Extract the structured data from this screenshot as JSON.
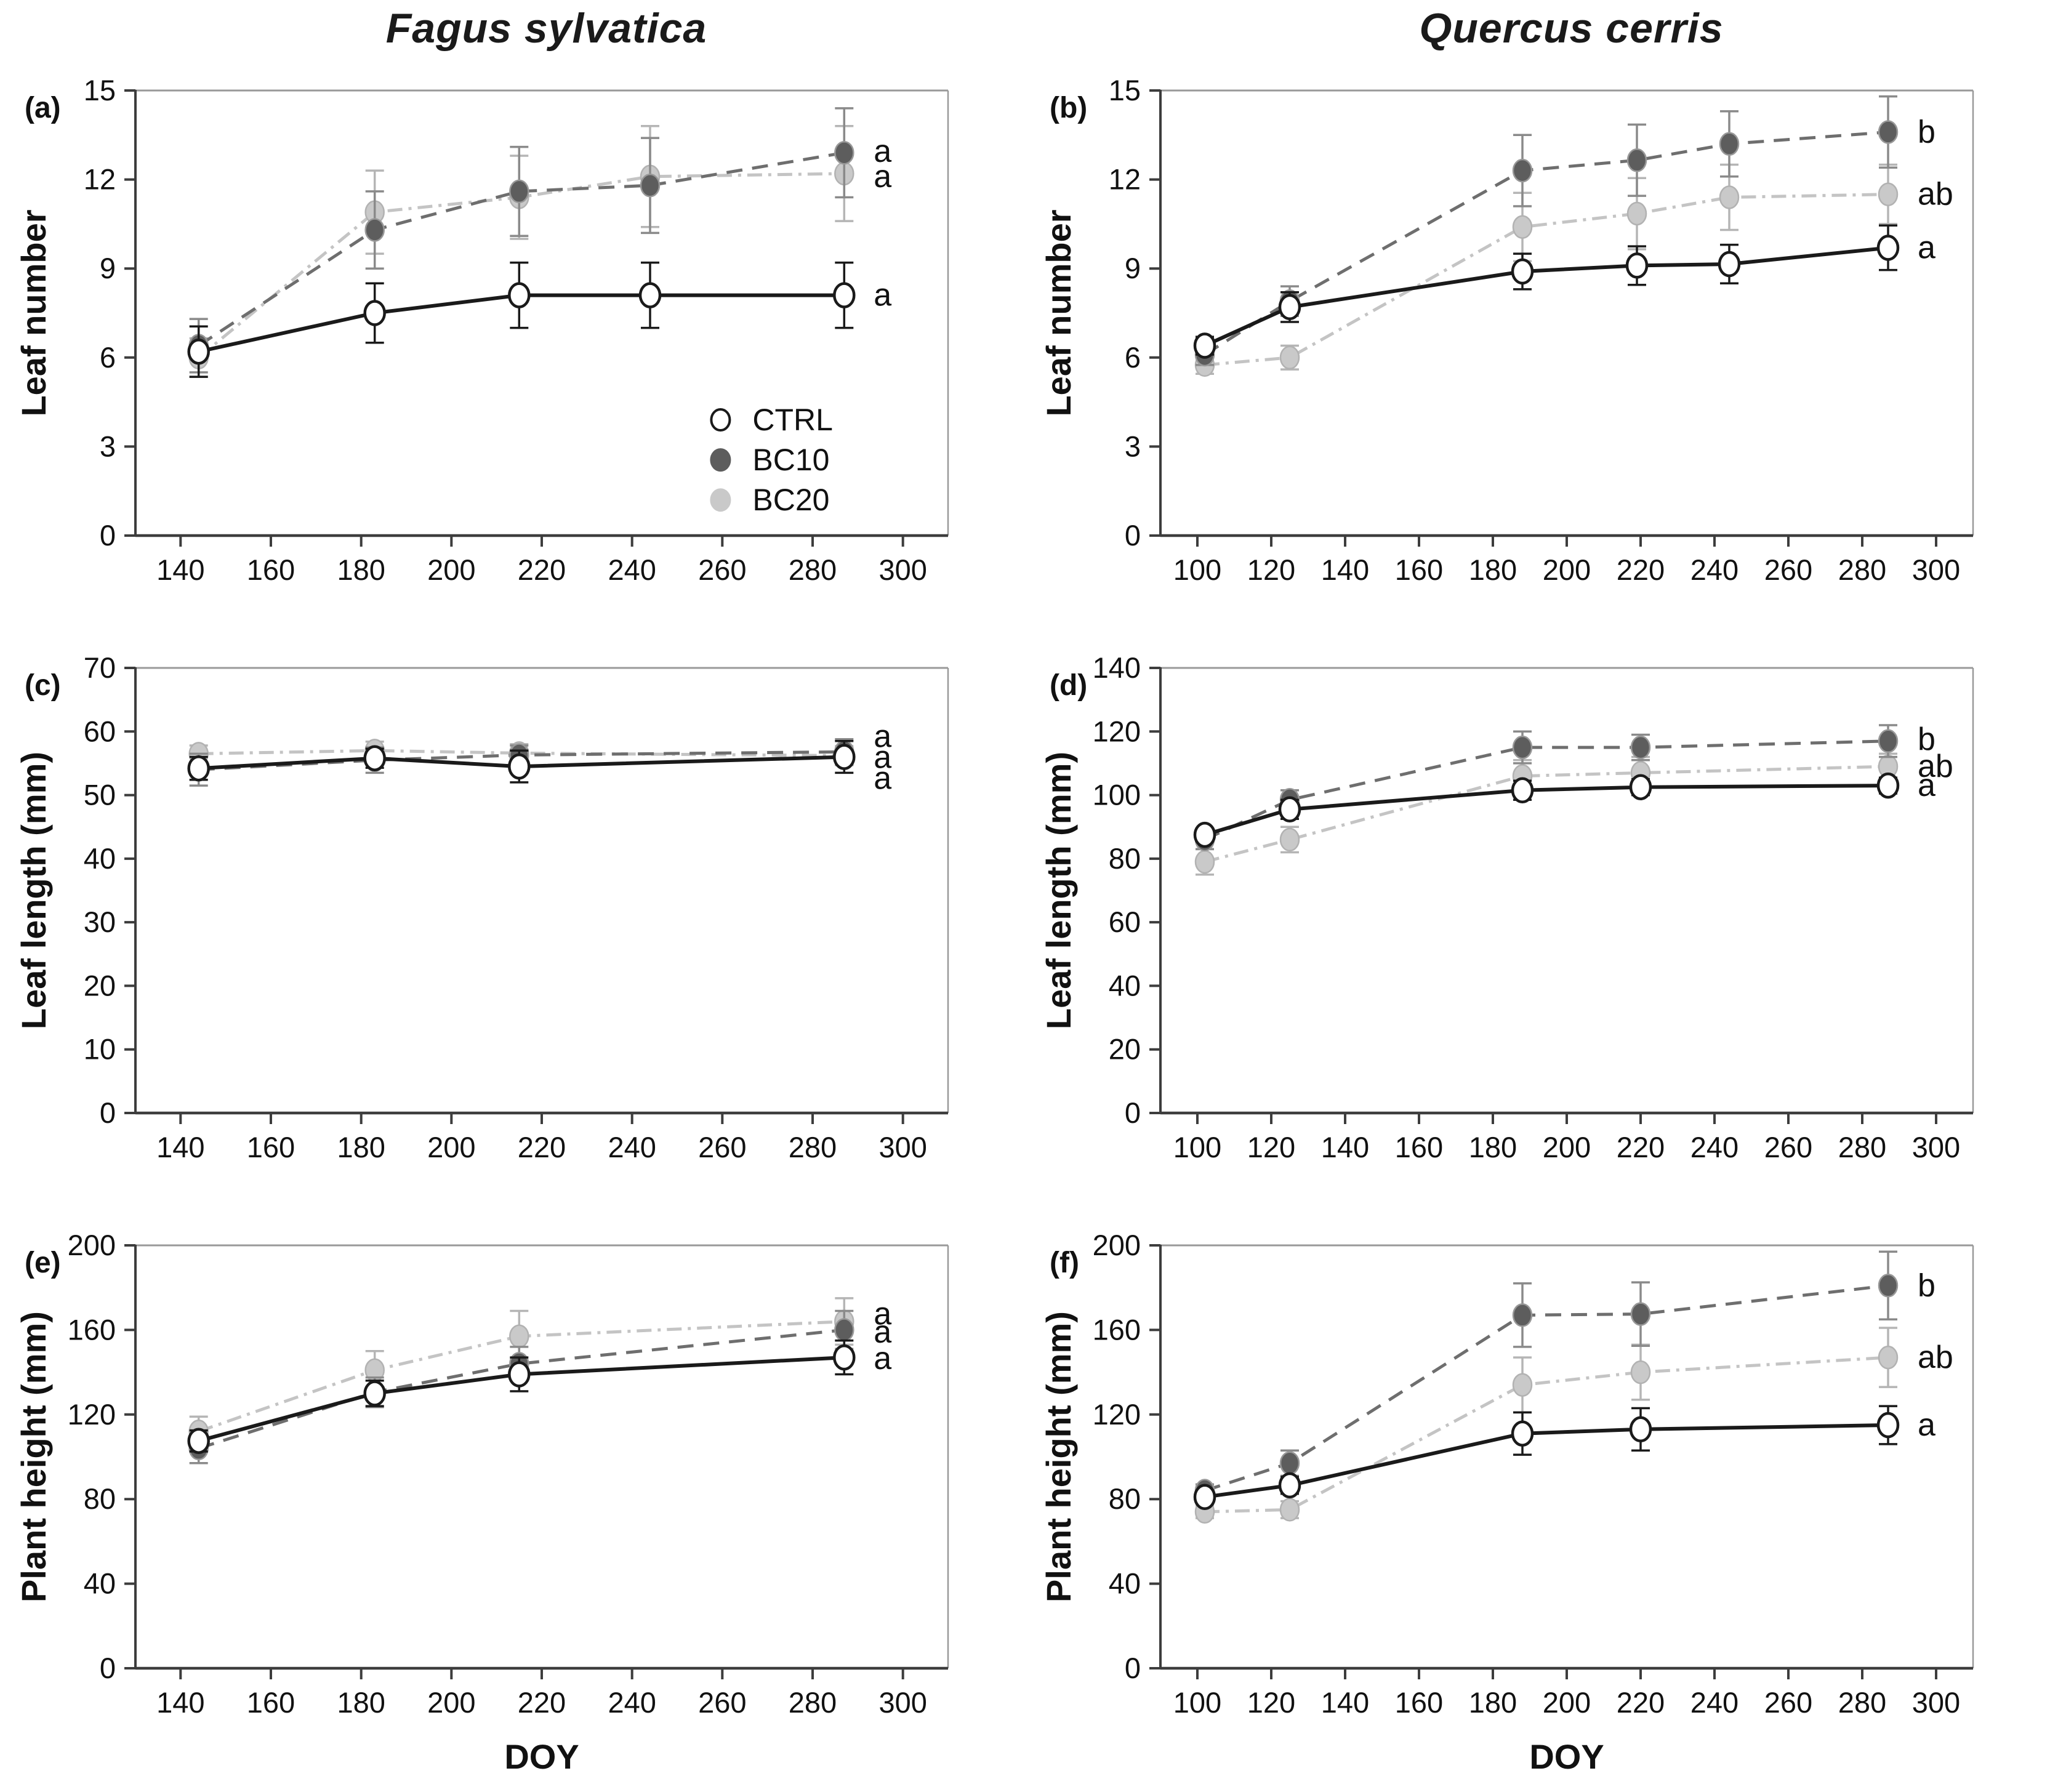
{
  "figure": {
    "column_titles": [
      "Fagus sylvatica",
      "Quercus cerris"
    ],
    "x_axis_label": "DOY",
    "legend": {
      "items": [
        "CTRL",
        "BC10",
        "BC20"
      ],
      "location": "panel-a lower right"
    },
    "series_styles": {
      "CTRL": {
        "line_color": "#1a1a1a",
        "dash": "",
        "line_width": 6,
        "marker_fill": "#ffffff",
        "marker_stroke": "#1a1a1a",
        "marker_stroke_width": 4.5,
        "err_color": "#1a1a1a"
      },
      "BC10": {
        "line_color": "#6e6e6e",
        "dash": "26 16",
        "line_width": 5,
        "marker_fill": "#5d5d5d",
        "marker_stroke": "#989898",
        "marker_stroke_width": 2.5,
        "err_color": "#8a8a8a"
      },
      "BC20": {
        "line_color": "#c4c4c4",
        "dash": "24 10 5 10",
        "line_width": 5,
        "marker_fill": "#c9c9c9",
        "marker_stroke": "#b2b2b2",
        "marker_stroke_width": 2.5,
        "err_color": "#b5b5b5"
      }
    },
    "axis_colors": {
      "main_axis": "#3d3d3d",
      "box_line": "#999999",
      "tick": "#3d3d3d",
      "text": "#111111"
    }
  },
  "chart_data": [
    {
      "type": "line",
      "panel_label": "(a)",
      "column": "Fagus sylvatica",
      "ylabel": "Leaf number",
      "ylim": [
        0,
        15
      ],
      "yticks": [
        0,
        3,
        6,
        9,
        12,
        15
      ],
      "xlim": [
        130,
        310
      ],
      "xticks": [
        140,
        160,
        180,
        200,
        220,
        240,
        260,
        280,
        300
      ],
      "x": [
        144,
        183,
        215,
        244,
        287
      ],
      "show_xlabel": false,
      "show_legend": true,
      "series": [
        {
          "name": "CTRL",
          "values": [
            6.2,
            7.5,
            8.1,
            8.1,
            8.1
          ],
          "errors": [
            0.85,
            1.0,
            1.1,
            1.1,
            1.1
          ],
          "sig_letter": "a",
          "sig_letter_y": 8.1
        },
        {
          "name": "BC10",
          "values": [
            6.4,
            10.3,
            11.6,
            11.8,
            12.9
          ],
          "errors": [
            0.9,
            1.3,
            1.5,
            1.6,
            1.5
          ],
          "sig_letter": "a",
          "sig_letter_y": 12.95
        },
        {
          "name": "BC20",
          "values": [
            6.0,
            10.9,
            11.4,
            12.1,
            12.2
          ],
          "errors": [
            0.65,
            1.4,
            1.4,
            1.7,
            1.6
          ],
          "sig_letter": "a",
          "sig_letter_y": 12.1
        }
      ]
    },
    {
      "type": "line",
      "panel_label": "(b)",
      "column": "Quercus cerris",
      "ylabel": "Leaf number",
      "ylim": [
        0,
        15
      ],
      "yticks": [
        0,
        3,
        6,
        9,
        12,
        15
      ],
      "xlim": [
        90,
        310
      ],
      "xticks": [
        100,
        120,
        140,
        160,
        180,
        200,
        220,
        240,
        260,
        280,
        300
      ],
      "x": [
        102,
        125,
        188,
        219,
        244,
        287
      ],
      "show_xlabel": false,
      "show_legend": false,
      "series": [
        {
          "name": "CTRL",
          "values": [
            6.4,
            7.7,
            8.9,
            9.1,
            9.15,
            9.7
          ],
          "errors": [
            0.3,
            0.5,
            0.6,
            0.65,
            0.65,
            0.75
          ],
          "sig_letter": "a",
          "sig_letter_y": 9.7
        },
        {
          "name": "BC10",
          "values": [
            6.1,
            7.9,
            12.3,
            12.65,
            13.2,
            13.6
          ],
          "errors": [
            0.35,
            0.5,
            1.2,
            1.2,
            1.1,
            1.2
          ],
          "sig_letter": "b",
          "sig_letter_y": 13.6
        },
        {
          "name": "BC20",
          "values": [
            5.75,
            6.0,
            10.4,
            10.85,
            11.4,
            11.5
          ],
          "errors": [
            0.3,
            0.4,
            1.15,
            1.2,
            1.1,
            1.0
          ],
          "sig_letter": "ab",
          "sig_letter_y": 11.5
        }
      ]
    },
    {
      "type": "line",
      "panel_label": "(c)",
      "column": "Fagus sylvatica",
      "ylabel": "Leaf length (mm)",
      "ylim": [
        0,
        70
      ],
      "yticks": [
        0,
        10,
        20,
        30,
        40,
        50,
        60,
        70
      ],
      "xlim": [
        130,
        310
      ],
      "xticks": [
        140,
        160,
        180,
        200,
        220,
        240,
        260,
        280,
        300
      ],
      "x": [
        144,
        183,
        215,
        287
      ],
      "show_xlabel": false,
      "show_legend": false,
      "series": [
        {
          "name": "CTRL",
          "values": [
            54.2,
            55.8,
            54.5,
            56.0
          ],
          "errors": [
            1.8,
            1.5,
            2.5,
            2.5
          ],
          "sig_letter": "a",
          "sig_letter_y": 52.6
        },
        {
          "name": "BC10",
          "values": [
            54.0,
            55.5,
            56.3,
            56.8
          ],
          "errors": [
            2.5,
            2.0,
            1.5,
            2.0
          ],
          "sig_letter": "a",
          "sig_letter_y": 59.2
        },
        {
          "name": "BC20",
          "values": [
            56.5,
            57.0,
            56.6,
            56.2
          ],
          "errors": [
            1.3,
            1.4,
            1.4,
            1.5
          ],
          "sig_letter": "a",
          "sig_letter_y": 55.9
        }
      ]
    },
    {
      "type": "line",
      "panel_label": "(d)",
      "column": "Quercus cerris",
      "ylabel": "Leaf length (mm)",
      "ylim": [
        0,
        140
      ],
      "yticks": [
        0,
        20,
        40,
        60,
        80,
        100,
        120,
        140
      ],
      "xlim": [
        90,
        310
      ],
      "xticks": [
        100,
        120,
        140,
        160,
        180,
        200,
        220,
        240,
        260,
        280,
        300
      ],
      "x": [
        102,
        125,
        188,
        220,
        287
      ],
      "show_xlabel": false,
      "show_legend": false,
      "series": [
        {
          "name": "CTRL",
          "values": [
            87.5,
            95.5,
            101.5,
            102.5,
            103
          ],
          "errors": [
            2,
            3,
            3,
            2.5,
            2.5
          ],
          "sig_letter": "a",
          "sig_letter_y": 103
        },
        {
          "name": "BC10",
          "values": [
            86,
            98.5,
            115,
            115,
            117
          ],
          "errors": [
            3,
            3,
            5,
            4,
            5
          ],
          "sig_letter": "b",
          "sig_letter_y": 117.5
        },
        {
          "name": "BC20",
          "values": [
            79,
            86,
            106,
            107,
            109
          ],
          "errors": [
            4,
            4,
            5,
            5,
            4
          ],
          "sig_letter": "ab",
          "sig_letter_y": 109
        }
      ]
    },
    {
      "type": "line",
      "panel_label": "(e)",
      "column": "Fagus sylvatica",
      "ylabel": "Plant height (mm)",
      "ylim": [
        0,
        200
      ],
      "yticks": [
        0,
        40,
        80,
        120,
        160,
        200
      ],
      "xlim": [
        130,
        310
      ],
      "xticks": [
        140,
        160,
        180,
        200,
        220,
        240,
        260,
        280,
        300
      ],
      "x": [
        144,
        183,
        215,
        287
      ],
      "show_xlabel": true,
      "show_legend": false,
      "series": [
        {
          "name": "CTRL",
          "values": [
            107.5,
            130,
            139,
            147
          ],
          "errors": [
            5,
            6,
            8,
            8
          ],
          "sig_letter": "a",
          "sig_letter_y": 146.5
        },
        {
          "name": "BC10",
          "values": [
            104,
            130.5,
            144,
            160
          ],
          "errors": [
            7,
            7,
            8,
            9
          ],
          "sig_letter": "a",
          "sig_letter_y": 159
        },
        {
          "name": "BC20",
          "values": [
            112,
            141,
            157,
            164
          ],
          "errors": [
            7,
            9,
            12,
            11
          ],
          "sig_letter": "a",
          "sig_letter_y": 167.5
        }
      ]
    },
    {
      "type": "line",
      "panel_label": "(f)",
      "column": "Quercus cerris",
      "ylabel": "Plant height (mm)",
      "ylim": [
        0,
        200
      ],
      "yticks": [
        0,
        40,
        80,
        120,
        160,
        200
      ],
      "xlim": [
        90,
        310
      ],
      "xticks": [
        100,
        120,
        140,
        160,
        180,
        200,
        220,
        240,
        260,
        280,
        300
      ],
      "x": [
        102,
        125,
        188,
        220,
        287
      ],
      "show_xlabel": true,
      "show_legend": false,
      "series": [
        {
          "name": "CTRL",
          "values": [
            81,
            86.5,
            111,
            113,
            115
          ],
          "errors": [
            3,
            4,
            10,
            10,
            9
          ],
          "sig_letter": "a",
          "sig_letter_y": 115
        },
        {
          "name": "BC10",
          "values": [
            84,
            97,
            167,
            167.5,
            181
          ],
          "errors": [
            3,
            6,
            15,
            15,
            16
          ],
          "sig_letter": "b",
          "sig_letter_y": 181
        },
        {
          "name": "BC20",
          "values": [
            74,
            75,
            134,
            140,
            147
          ],
          "errors": [
            3,
            4,
            13,
            13,
            14
          ],
          "sig_letter": "ab",
          "sig_letter_y": 147
        }
      ]
    }
  ]
}
